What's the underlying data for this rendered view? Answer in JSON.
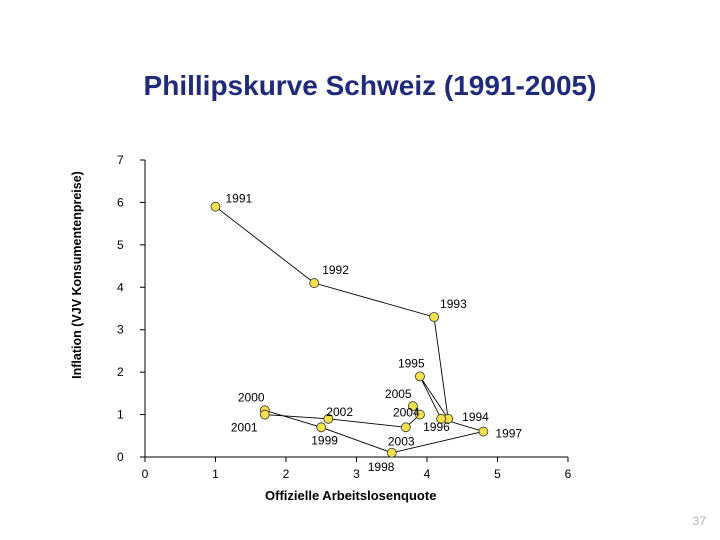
{
  "page_number": "37",
  "chart_data": {
    "type": "scatter",
    "title": "Phillipskurve Schweiz (1991-2005)",
    "xlabel": "Offizielle Arbeitslosenquote",
    "ylabel": "Inflation (VJV Konsumentenpreise)",
    "xlim": [
      0,
      6
    ],
    "ylim": [
      0,
      7
    ],
    "x_ticks": [
      "0",
      "1",
      "2",
      "3",
      "4",
      "5",
      "6"
    ],
    "y_ticks": [
      "0",
      "1",
      "2",
      "3",
      "4",
      "5",
      "6",
      "7"
    ],
    "grid": false,
    "connected": true,
    "marker_color": "#f2e14c",
    "line_color": "#000000",
    "points": [
      {
        "label": "1991",
        "x": 1.0,
        "y": 5.9
      },
      {
        "label": "1992",
        "x": 2.4,
        "y": 4.1
      },
      {
        "label": "1993",
        "x": 4.1,
        "y": 3.3
      },
      {
        "label": "1994",
        "x": 4.3,
        "y": 0.9
      },
      {
        "label": "1995",
        "x": 3.9,
        "y": 1.9
      },
      {
        "label": "1996",
        "x": 4.2,
        "y": 0.9
      },
      {
        "label": "1997",
        "x": 4.8,
        "y": 0.6
      },
      {
        "label": "1998",
        "x": 3.5,
        "y": 0.1
      },
      {
        "label": "1999",
        "x": 2.5,
        "y": 0.7
      },
      {
        "label": "2000",
        "x": 1.7,
        "y": 1.1
      },
      {
        "label": "2001",
        "x": 1.7,
        "y": 1.0
      },
      {
        "label": "2002",
        "x": 2.6,
        "y": 0.9
      },
      {
        "label": "2003",
        "x": 3.7,
        "y": 0.7
      },
      {
        "label": "2004",
        "x": 3.9,
        "y": 1.0
      },
      {
        "label": "2005",
        "x": 3.8,
        "y": 1.2
      }
    ]
  }
}
